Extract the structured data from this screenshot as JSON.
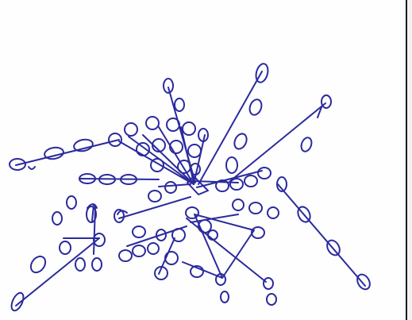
{
  "image": {
    "description_tags": [
      "hand-drawn",
      "ink",
      "network-sketch"
    ],
    "ink_color": "#2a2a9e",
    "paper_color": "#fdfdfb",
    "edge_color": "#1a1a1a"
  }
}
